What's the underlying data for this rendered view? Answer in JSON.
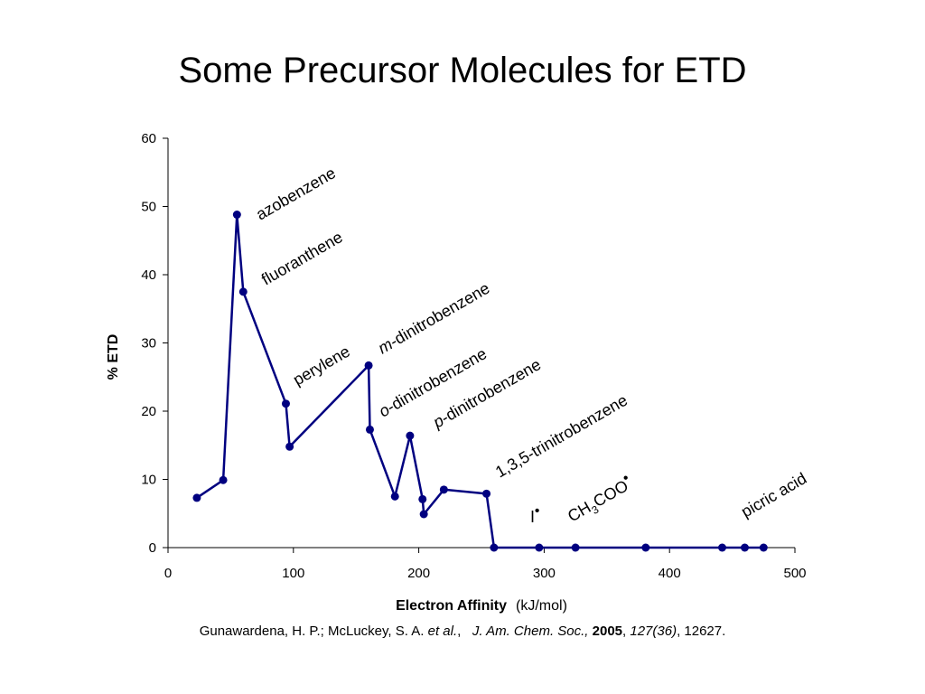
{
  "slide": {
    "title": "Some Precursor Molecules for ETD",
    "citation": {
      "authors": "Gunawardena, H. P.; McLuckey, S. A.",
      "etal": "et al.",
      "journal": "J. Am. Chem. Soc.,",
      "year": "2005",
      "volume": "127(36)",
      "pages": "12627."
    }
  },
  "chart_data": {
    "type": "line",
    "xlabel": "Electron Affinity",
    "xlabel_unit": "(kJ/mol)",
    "ylabel": "% ETD",
    "xlim": [
      0,
      500
    ],
    "ylim": [
      0,
      60
    ],
    "xticks": [
      0,
      100,
      200,
      300,
      400,
      500
    ],
    "yticks": [
      0,
      10,
      20,
      30,
      40,
      50,
      60
    ],
    "grid": false,
    "series_color": "#000080",
    "series": [
      {
        "x": [
          23,
          44,
          55,
          60,
          94,
          97,
          160,
          161,
          181,
          193,
          203,
          204,
          220,
          254,
          260,
          296,
          325,
          381,
          442,
          460,
          475
        ],
        "y": [
          7.3,
          9.9,
          48.8,
          37.5,
          21.1,
          14.8,
          26.7,
          17.3,
          7.5,
          16.4,
          7.1,
          4.9,
          8.5,
          7.9,
          0,
          0,
          0,
          0,
          0,
          0,
          0
        ]
      }
    ],
    "annotations": [
      {
        "text": "azobenzene"
      },
      {
        "text": "fluoranthene"
      },
      {
        "text": "perylene"
      },
      {
        "prefix": "m",
        "text": "-dinitrobenzene"
      },
      {
        "prefix": "o",
        "text": "-dinitrobenzene"
      },
      {
        "prefix": "p",
        "text": "-dinitrobenzene"
      },
      {
        "text": "1,3,5-trinitrobenzene"
      },
      {
        "text": "I",
        "sup": "•"
      },
      {
        "text": "CH",
        "sub": "3",
        "text2": "COO",
        "sup": "•"
      },
      {
        "text": "picric acid"
      }
    ]
  }
}
